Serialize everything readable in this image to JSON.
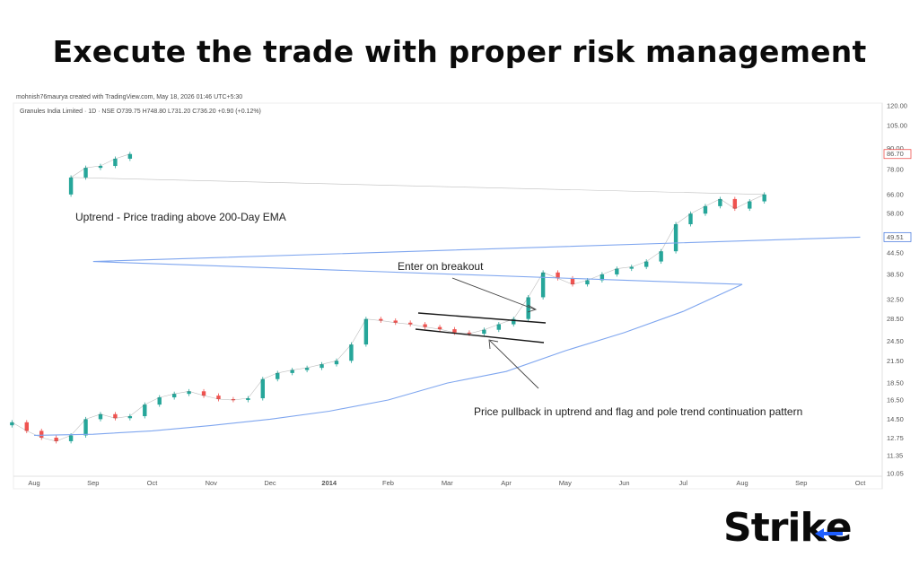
{
  "headline": "Execute the trade with proper risk management",
  "credit": "mohnish76maurya created with TradingView.com, May 18, 2026 01:46 UTC+5:30",
  "symbol_line": "Granules India Limited · 1D · NSE  O739.75  H748.80  L731.20  C736.20  +0.90 (+0.12%)",
  "annotations": {
    "uptrend": "Uptrend - Price trading above 200-Day EMA",
    "breakout": "Enter on breakout",
    "pullback": "Price pullback in uptrend and flag and pole trend continuation pattern"
  },
  "logo": {
    "prefix": "Stri",
    "middle": "k",
    "suffix": "e",
    "accent": "#1e5eff"
  },
  "colors": {
    "up": "#26a69a",
    "down": "#ef5350",
    "ema": "#7fa6ef",
    "price_tag": "#ef5350",
    "ema_tag": "#4f7fe0"
  },
  "chart_data": {
    "type": "line",
    "y_scale": "log",
    "ylim": [
      10.05,
      120.0
    ],
    "y_ticks": [
      10.05,
      11.35,
      12.75,
      14.5,
      16.5,
      18.5,
      21.5,
      24.5,
      28.5,
      32.5,
      38.5,
      44.5,
      49.51,
      58.0,
      66.0,
      78.0,
      86.7,
      90.0,
      105.0,
      120.0
    ],
    "x_tick_labels": [
      "Aug",
      "Sep",
      "Oct",
      "Nov",
      "Dec",
      "2014",
      "Feb",
      "Mar",
      "Apr",
      "May",
      "Jun",
      "Jul",
      "Aug",
      "Sep",
      "Oct"
    ],
    "last_price": 86.7,
    "ema_last": 49.51,
    "series": [
      {
        "role": "price",
        "x": [
          "Aug",
          "Aug",
          "Aug",
          "Aug",
          "Sep",
          "Sep",
          "Sep",
          "Sep",
          "Oct",
          "Oct",
          "Oct",
          "Oct",
          "Nov",
          "Nov",
          "Nov",
          "Nov",
          "Dec",
          "Dec",
          "Dec",
          "Dec",
          "2014",
          "2014",
          "2014",
          "2014",
          "Feb",
          "Feb",
          "Feb",
          "Feb",
          "Mar",
          "Mar",
          "Mar",
          "Mar",
          "Apr",
          "Apr",
          "Apr",
          "Apr",
          "May",
          "May",
          "May",
          "May",
          "Jun",
          "Jun",
          "Jun",
          "Jun",
          "Jul",
          "Jul",
          "Jul",
          "Jul",
          "Aug",
          "Aug",
          "Aug",
          "Aug",
          "Sep",
          "Sep",
          "Sep",
          "Sep",
          "Oct"
        ],
        "values": [
          14.2,
          13.4,
          12.8,
          12.5,
          13.0,
          14.5,
          15.0,
          14.6,
          14.8,
          16.0,
          16.8,
          17.2,
          17.5,
          17.0,
          16.6,
          16.5,
          16.7,
          19.0,
          19.8,
          20.2,
          20.5,
          21.0,
          21.5,
          24.0,
          28.5,
          28.2,
          27.8,
          27.5,
          27.0,
          26.6,
          26.0,
          25.8,
          26.5,
          27.5,
          28.5,
          33.0,
          39.0,
          37.5,
          36.0,
          37.0,
          38.5,
          40.0,
          40.5,
          42.0,
          45.0,
          54.0,
          58.0,
          61.0,
          64.0,
          60.0,
          63.0,
          66.0,
          74.0,
          79.0,
          80.0,
          84.0,
          86.7
        ]
      },
      {
        "role": "ema_200",
        "x": [
          "Aug",
          "Sep",
          "Oct",
          "Nov",
          "Dec",
          "2014",
          "Feb",
          "Mar",
          "Apr",
          "May",
          "Jun",
          "Jul",
          "Aug",
          "Sep",
          "Oct"
        ],
        "values": [
          13.0,
          13.1,
          13.4,
          13.9,
          14.5,
          15.3,
          16.5,
          18.5,
          20.0,
          23.0,
          26.0,
          30.0,
          36.0,
          42.0,
          49.51
        ]
      }
    ]
  }
}
